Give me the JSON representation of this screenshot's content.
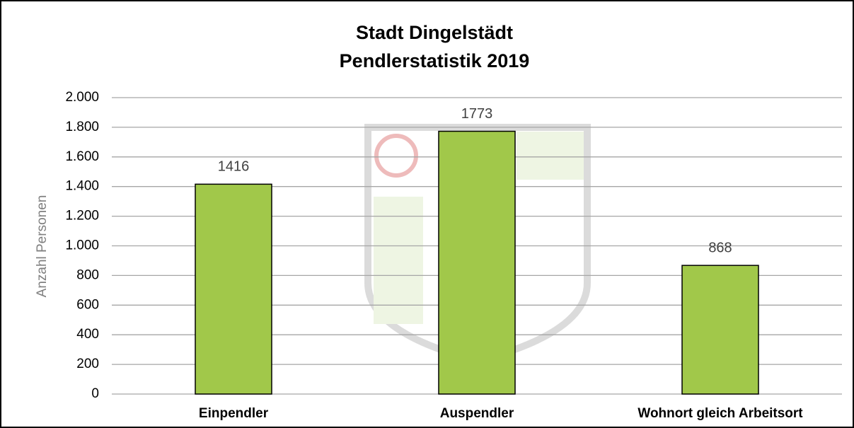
{
  "chart_data": {
    "type": "bar",
    "title": [
      "Stadt Dingelstädt",
      "Pendlerstatistik 2019"
    ],
    "y_label": "Anzahl Personen",
    "categories": [
      "Einpendler",
      "Auspendler",
      "Wohnort gleich Arbeitsort"
    ],
    "values": [
      1416,
      1773,
      868
    ],
    "color": "#a1c84a",
    "ylim": [
      0,
      2000
    ],
    "yticks": [
      0,
      200,
      400,
      600,
      800,
      {
        "value": 1000,
        "label": "1.000"
      },
      {
        "value": 1200,
        "label": "1.200"
      },
      {
        "value": 1400,
        "label": "1.400"
      },
      {
        "value": 1600,
        "label": "1.600"
      },
      {
        "value": 1800,
        "label": "1.800"
      },
      {
        "value": 2000,
        "label": "2.000"
      }
    ],
    "grid": true
  }
}
